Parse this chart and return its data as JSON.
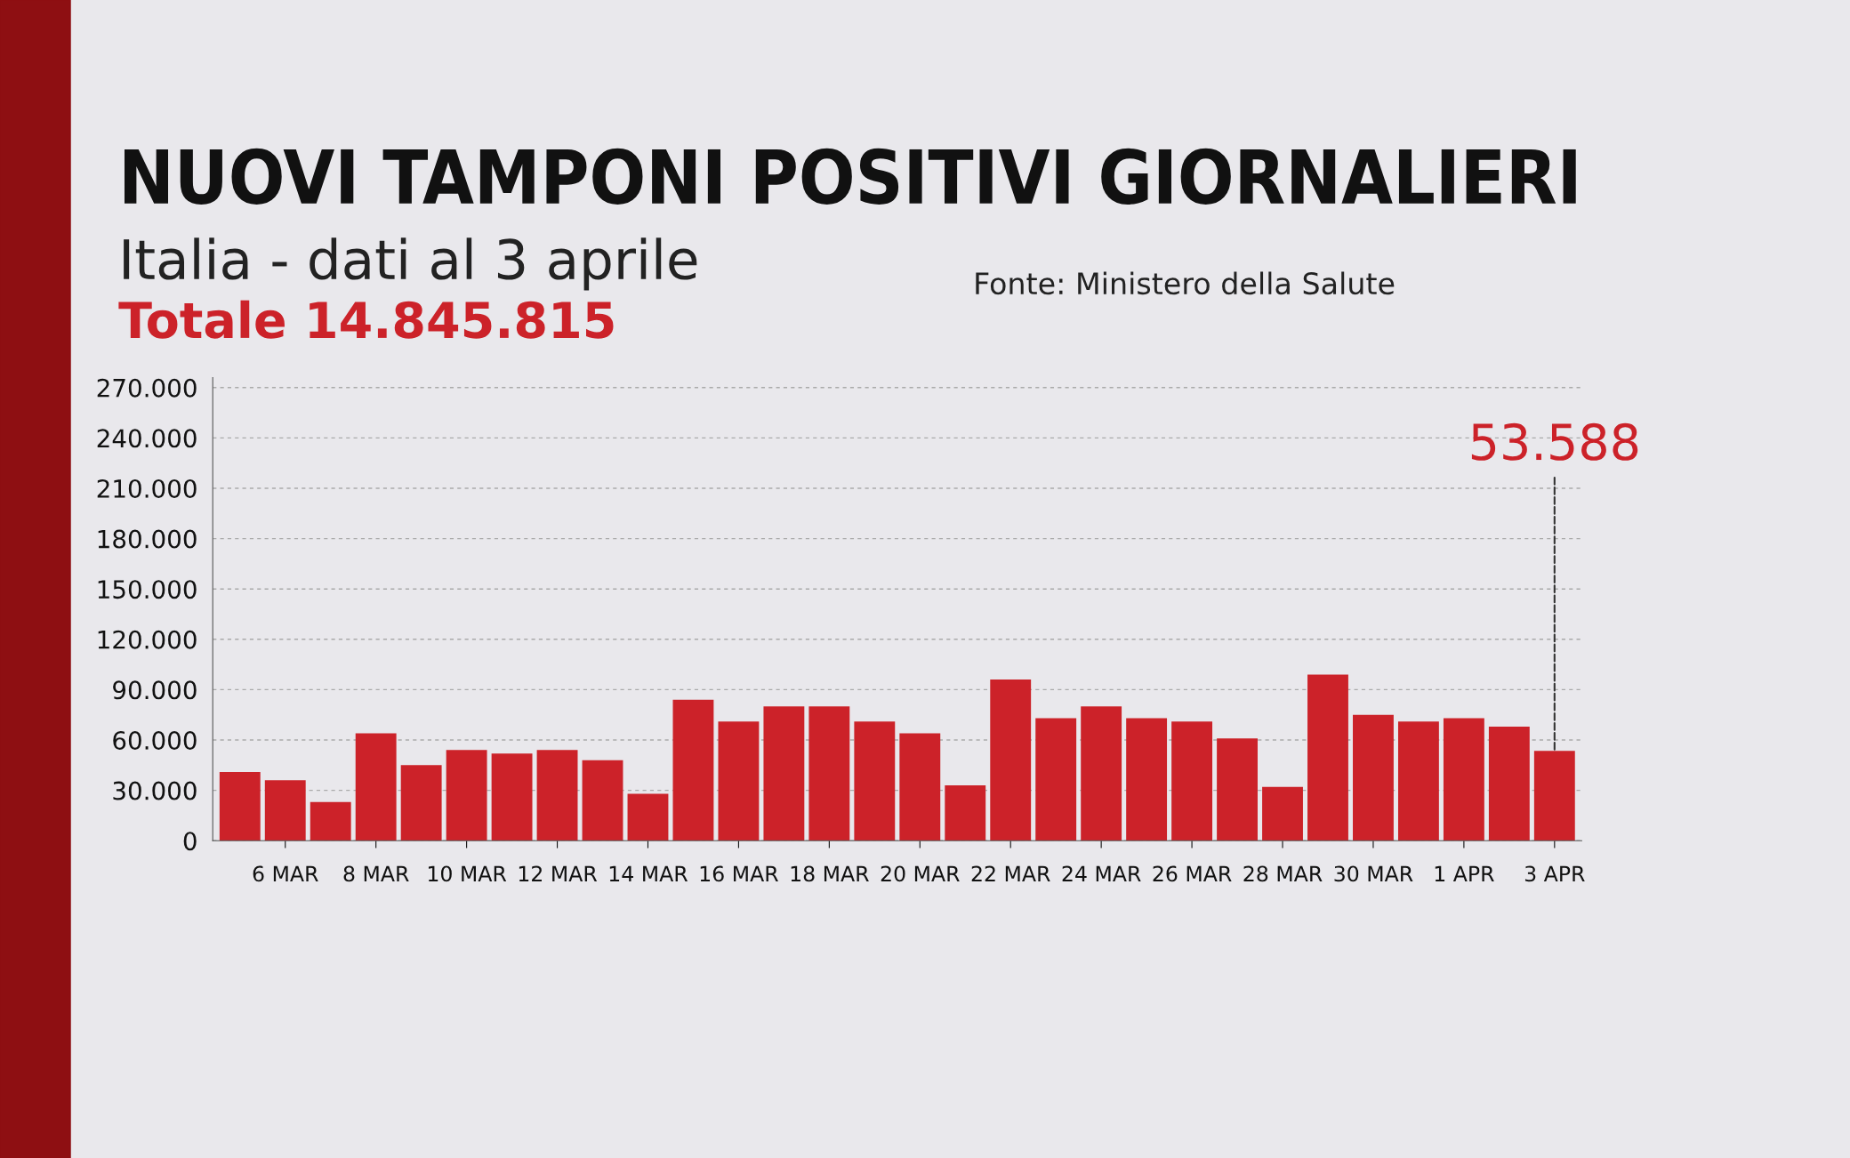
{
  "chart_data": {
    "type": "bar",
    "title": "NUOVI TAMPONI POSITIVI GIORNALIERI",
    "subtitle": "Italia - dati al 3 aprile",
    "categories": [
      null,
      "6 MAR",
      null,
      "8 MAR",
      null,
      "10 MAR",
      null,
      "12 MAR",
      null,
      "14 MAR",
      null,
      "16 MAR",
      null,
      "18 MAR",
      null,
      "20 MAR",
      null,
      "22 MAR",
      null,
      "24 MAR",
      null,
      "26 MAR",
      null,
      "28 MAR",
      null,
      "30 MAR",
      null,
      "1 APR",
      null,
      "3 APR"
    ],
    "values": [
      41000,
      36000,
      23000,
      64000,
      45000,
      54000,
      52000,
      54000,
      48000,
      28000,
      84000,
      71000,
      80000,
      80000,
      71000,
      64000,
      33000,
      96000,
      73000,
      80000,
      73000,
      71000,
      61000,
      32000,
      99000,
      75000,
      71000,
      73000,
      68000,
      53588
    ],
    "color": "#cc2229",
    "ylim": [
      0,
      276000
    ],
    "yticks": [
      {
        "value": 0,
        "label": "0"
      },
      {
        "value": 30000,
        "label": "30.000"
      },
      {
        "value": 60000,
        "label": "60.000"
      },
      {
        "value": 90000,
        "label": "90.000"
      },
      {
        "value": 120000,
        "label": "120.000"
      },
      {
        "value": 150000,
        "label": "150.000"
      },
      {
        "value": 180000,
        "label": "180.000"
      },
      {
        "value": 210000,
        "label": "210.000"
      },
      {
        "value": 240000,
        "label": "240.000"
      },
      {
        "value": 270000,
        "label": "270.000"
      }
    ],
    "grid": "y",
    "annotations": [
      "Totale 14.845.815",
      "Fonte: Ministero della Salute",
      {
        "text": "53.588",
        "x": "3 APR",
        "y": 53588
      }
    ]
  }
}
